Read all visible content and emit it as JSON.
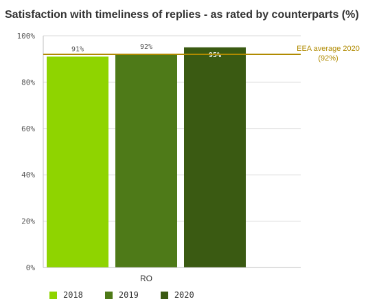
{
  "chart_data": {
    "type": "bar",
    "title": "Satisfaction with timeliness of replies - as rated by counterparts (%)",
    "categories": [
      "RO"
    ],
    "series": [
      {
        "name": "2018",
        "values": [
          91
        ],
        "label": "91%",
        "color": "#8fd400"
      },
      {
        "name": "2019",
        "values": [
          92
        ],
        "label": "92%",
        "color": "#4e7a18"
      },
      {
        "name": "2020",
        "values": [
          95
        ],
        "label": "95%",
        "color": "#3a5a12"
      }
    ],
    "ylim": [
      0,
      100
    ],
    "yticks": [
      {
        "value": 0,
        "label": "0%"
      },
      {
        "value": 20,
        "label": "20%"
      },
      {
        "value": 40,
        "label": "40%"
      },
      {
        "value": 60,
        "label": "60%"
      },
      {
        "value": 80,
        "label": "80%"
      },
      {
        "value": 100,
        "label": "100%"
      }
    ],
    "reference_line": {
      "value": 92,
      "label_line1": "EEA average 2020",
      "label_line2": "(92%)",
      "color": "#b08a00"
    },
    "grid": true,
    "legend_position": "bottom-left"
  }
}
